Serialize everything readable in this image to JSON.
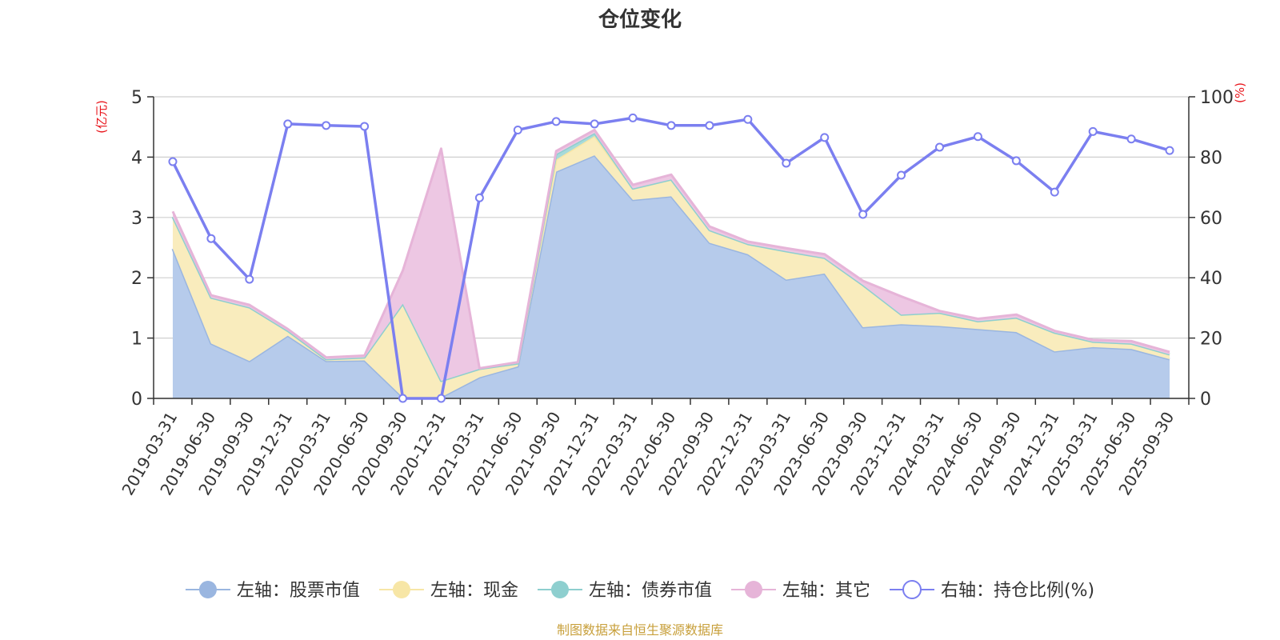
{
  "chart_data": {
    "type": "area",
    "title": "仓位变化",
    "left_unit": "(亿元)",
    "right_unit": "(%)",
    "left_ylim": [
      0,
      5
    ],
    "left_ticks": [
      "0",
      "1",
      "2",
      "3",
      "4",
      "5"
    ],
    "right_ylim": [
      0,
      100
    ],
    "right_ticks": [
      "0",
      "20",
      "40",
      "60",
      "80",
      "100"
    ],
    "grid": true,
    "legend_placement": "bottom",
    "source_note": "制图数据来自恒生聚源数据库",
    "x": [
      "2019-03-31",
      "2019-06-30",
      "2019-09-30",
      "2019-12-31",
      "2020-03-31",
      "2020-06-30",
      "2020-09-30",
      "2020-12-31",
      "2021-03-31",
      "2021-06-30",
      "2021-09-30",
      "2021-12-31",
      "2022-03-31",
      "2022-06-30",
      "2022-09-30",
      "2022-12-31",
      "2023-03-31",
      "2023-06-30",
      "2023-09-30",
      "2023-12-31",
      "2024-03-31",
      "2024-06-30",
      "2024-09-30",
      "2024-12-31",
      "2025-03-31",
      "2025-06-30",
      "2025-09-30"
    ],
    "series": [
      {
        "name": "左轴：股票市值",
        "axis": "left",
        "kind": "stacked-area",
        "color": "#9ab6e0",
        "fill": "#b6cbeb",
        "values": [
          2.48,
          0.91,
          0.62,
          1.04,
          0.62,
          0.63,
          0.02,
          0.02,
          0.35,
          0.53,
          3.76,
          4.03,
          3.29,
          3.35,
          2.58,
          2.39,
          1.97,
          2.07,
          1.18,
          1.23,
          1.2,
          1.15,
          1.1,
          0.78,
          0.85,
          0.82,
          0.65
        ]
      },
      {
        "name": "左轴：现金",
        "axis": "left",
        "kind": "stacked-area",
        "color": "#f7e6a6",
        "fill": "#f9ecbd",
        "values": [
          0.53,
          0.76,
          0.89,
          0.08,
          0.03,
          0.05,
          1.55,
          0.27,
          0.14,
          0.05,
          0.2,
          0.32,
          0.19,
          0.28,
          0.21,
          0.17,
          0.47,
          0.26,
          0.7,
          0.16,
          0.22,
          0.13,
          0.24,
          0.31,
          0.09,
          0.09,
          0.08
        ]
      },
      {
        "name": "左轴：债券市值",
        "axis": "left",
        "kind": "stacked-area",
        "color": "#8ecfcf",
        "fill": "#a7dada",
        "values": [
          0,
          0,
          0,
          0,
          0,
          0,
          0,
          0,
          0,
          0,
          0.09,
          0.05,
          0,
          0,
          0,
          0,
          0,
          0,
          0,
          0,
          0,
          0,
          0,
          0,
          0,
          0,
          0
        ]
      },
      {
        "name": "左轴：其它",
        "axis": "left",
        "kind": "stacked-area",
        "color": "#e6b4d8",
        "fill": "#edc7e3",
        "values": [
          0.09,
          0.04,
          0.04,
          0.03,
          0.03,
          0.03,
          0.55,
          3.85,
          0.01,
          0.02,
          0.05,
          0.05,
          0.06,
          0.08,
          0.06,
          0.04,
          0.05,
          0.06,
          0.07,
          0.3,
          0.03,
          0.04,
          0.05,
          0.03,
          0.03,
          0.04,
          0.04
        ]
      },
      {
        "name": "右轴：持仓比例(%)",
        "axis": "right",
        "kind": "line",
        "color": "#7b7ff0",
        "values": [
          78.5,
          53.0,
          39.5,
          91.0,
          90.5,
          90.2,
          0,
          0,
          66.5,
          89.0,
          91.8,
          91.0,
          93.0,
          90.5,
          90.5,
          92.5,
          78.0,
          86.5,
          61.0,
          74.0,
          83.3,
          86.8,
          78.8,
          68.4,
          88.5,
          86.0,
          82.2
        ]
      }
    ]
  }
}
